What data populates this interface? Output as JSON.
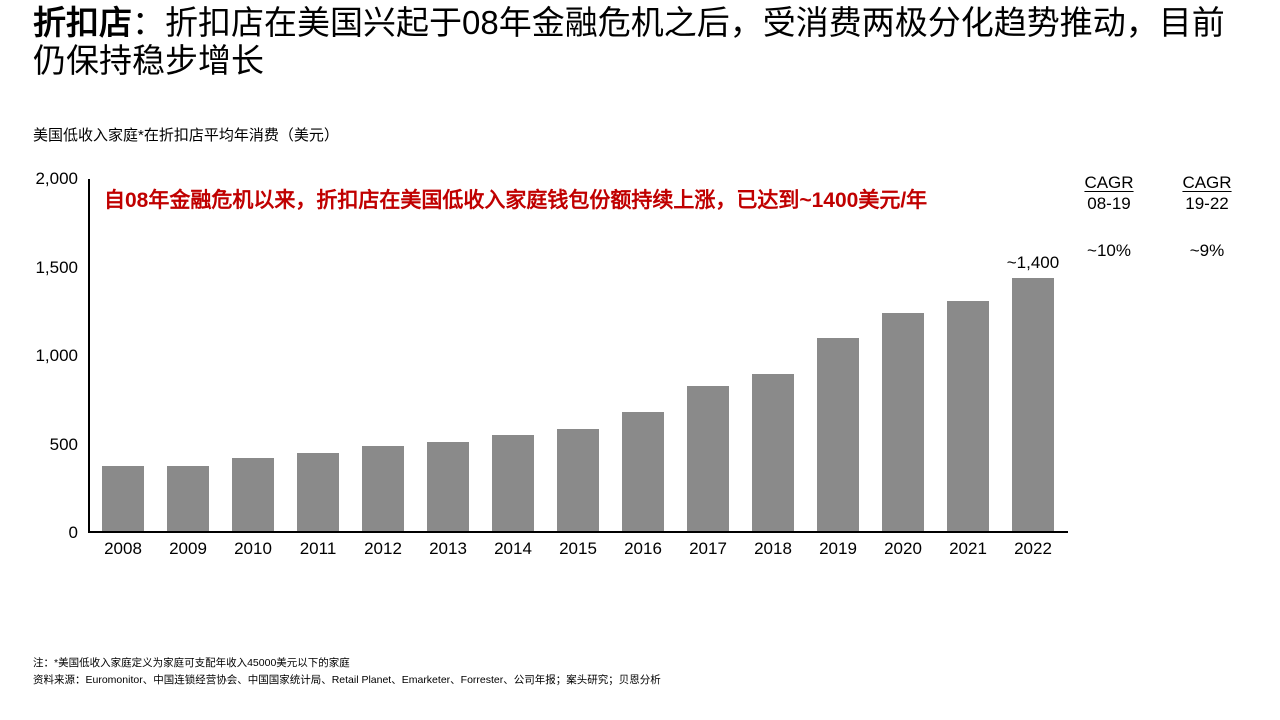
{
  "colors": {
    "accent": "#c00000",
    "text": "#000000",
    "bar_gray": "#8a8a8a"
  },
  "title": {
    "emphasis": "折扣店",
    "rest": "：折扣店在美国兴起于08年金融危机之后，受消费两极分化趋势推动，目前仍保持稳步增长"
  },
  "chart_data": {
    "type": "bar",
    "title": "美国低收入家庭*在折扣店平均年消费（美元）",
    "annotation": "自08年金融危机以来，折扣店在美国低收入家庭钱包份额持续上涨，已达到~1400美元/年",
    "categories": [
      "2008",
      "2009",
      "2010",
      "2011",
      "2012",
      "2013",
      "2014",
      "2015",
      "2016",
      "2017",
      "2018",
      "2019",
      "2020",
      "2021",
      "2022"
    ],
    "values": [
      370,
      370,
      410,
      440,
      480,
      500,
      540,
      575,
      675,
      820,
      885,
      1090,
      1230,
      1300,
      1430
    ],
    "bar_label": {
      "year": "2022",
      "text": "~1,400"
    },
    "xlabel": "",
    "ylabel": "",
    "ylim": [
      0,
      2000
    ],
    "yticks": [
      0,
      500,
      1000,
      1500,
      2000
    ],
    "ytick_labels": [
      "0",
      "500",
      "1,000",
      "1,500",
      "2,000"
    ],
    "bar_color": "#8a8a8a",
    "grid": false,
    "legend": null
  },
  "cagr": [
    {
      "header": "CAGR",
      "period": "08-19",
      "value": "~10%"
    },
    {
      "header": "CAGR",
      "period": "19-22",
      "value": "~9%"
    }
  ],
  "footer": {
    "note": "注：*美国低收入家庭定义为家庭可支配年收入45000美元以下的家庭",
    "source": "资料来源：Euromonitor、中国连锁经营协会、中国国家统计局、Retail Planet、Emarketer、Forrester、公司年报；案头研究；贝恩分析"
  }
}
